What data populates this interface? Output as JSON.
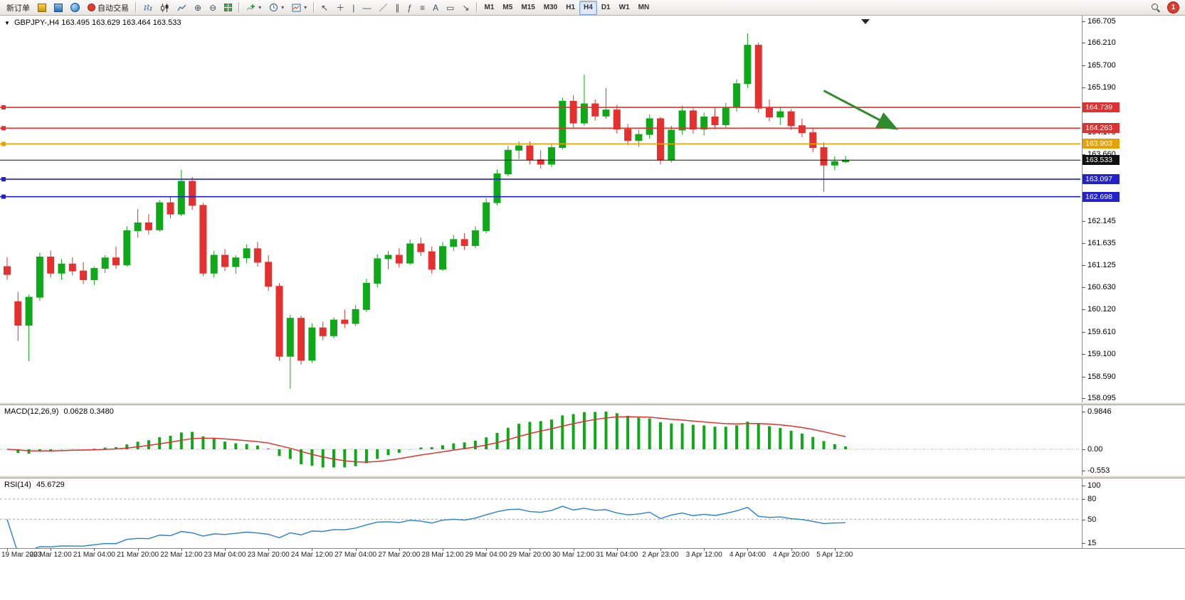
{
  "toolbar": {
    "new_order_label": "新订单",
    "autotrading_label": "自动交易",
    "timeframes": [
      "M1",
      "M5",
      "M15",
      "M30",
      "H1",
      "H4",
      "D1",
      "W1",
      "MN"
    ],
    "active_timeframe": "H4",
    "notification_count": "1"
  },
  "chart_header": {
    "symbol_period": "GBPJPY-,H4",
    "ohlc": "163.495 163.629 163.464 163.533"
  },
  "indicators": {
    "macd": {
      "label": "MACD(12,26,9)",
      "values": "0.0628 0.3480",
      "scale": [
        "0.9846",
        "0.00",
        "-0.553"
      ]
    },
    "rsi": {
      "label": "RSI(14)",
      "values": "45.6729",
      "scale": [
        "100",
        "80",
        "50",
        "15"
      ],
      "levels": [
        80,
        50
      ]
    }
  },
  "chart_data": {
    "type": "candlestick",
    "symbol": "GBPJPY-",
    "timeframe": "H4",
    "price_range": {
      "min": 158.095,
      "max": 166.705
    },
    "price_axis_labels": [
      166.705,
      166.21,
      165.7,
      165.19,
      164.17,
      163.66,
      162.145,
      161.635,
      161.125,
      160.63,
      160.12,
      159.61,
      159.1,
      158.59,
      158.095
    ],
    "hlines": [
      {
        "price": 164.739,
        "label": "164.739",
        "color": "#e03131",
        "name": "resistance-line-1",
        "handles": true
      },
      {
        "price": 164.263,
        "label": "164.263",
        "color": "#e03131",
        "name": "resistance-line-2",
        "handles": true
      },
      {
        "price": 163.903,
        "label": "163.903",
        "color": "#e8a200",
        "name": "pivot-line",
        "handles": true
      },
      {
        "price": 163.533,
        "label": "163.533",
        "color": "#111111",
        "name": "current-price-line",
        "handles": false
      },
      {
        "price": 163.097,
        "label": "163.097",
        "color": "#2222cc",
        "name": "support-line-1",
        "handles": true
      },
      {
        "price": 162.698,
        "label": "162.698",
        "color": "#2222cc",
        "name": "support-line-2",
        "handles": true
      }
    ],
    "time_labels": [
      "19 Mar 2023",
      "20 Mar 12:00",
      "21 Mar 04:00",
      "21 Mar 20:00",
      "22 Mar 12:00",
      "23 Mar 04:00",
      "23 Mar 20:00",
      "24 Mar 12:00",
      "27 Mar 04:00",
      "27 Mar 20:00",
      "28 Mar 12:00",
      "29 Mar 04:00",
      "29 Mar 20:00",
      "30 Mar 12:00",
      "31 Mar 04:00",
      "2 Apr 23:00",
      "3 Apr 12:00",
      "4 Apr 04:00",
      "4 Apr 20:00",
      "5 Apr 12:00"
    ],
    "candles": [
      [
        161.1,
        161.32,
        160.8,
        160.92
      ],
      [
        160.3,
        160.52,
        159.4,
        159.76
      ],
      [
        159.76,
        160.46,
        158.94,
        160.4
      ],
      [
        160.4,
        161.42,
        160.32,
        161.32
      ],
      [
        161.32,
        161.47,
        160.85,
        160.95
      ],
      [
        160.95,
        161.27,
        160.8,
        161.16
      ],
      [
        161.16,
        161.31,
        160.9,
        161.0
      ],
      [
        161.0,
        161.2,
        160.7,
        160.8
      ],
      [
        160.8,
        161.1,
        160.68,
        161.06
      ],
      [
        161.06,
        161.36,
        160.95,
        161.3
      ],
      [
        161.3,
        161.56,
        161.05,
        161.14
      ],
      [
        161.14,
        162.02,
        161.1,
        161.92
      ],
      [
        161.92,
        162.42,
        161.76,
        162.1
      ],
      [
        162.1,
        162.3,
        161.84,
        161.94
      ],
      [
        161.94,
        162.62,
        161.9,
        162.56
      ],
      [
        162.56,
        162.7,
        162.2,
        162.3
      ],
      [
        162.3,
        163.31,
        162.25,
        163.05
      ],
      [
        163.05,
        163.15,
        162.4,
        162.5
      ],
      [
        162.5,
        162.56,
        160.88,
        160.95
      ],
      [
        160.95,
        161.46,
        160.85,
        161.36
      ],
      [
        161.36,
        161.5,
        161.0,
        161.1
      ],
      [
        161.1,
        161.36,
        160.94,
        161.3
      ],
      [
        161.3,
        161.61,
        161.18,
        161.51
      ],
      [
        161.51,
        161.66,
        161.1,
        161.2
      ],
      [
        161.2,
        161.36,
        160.55,
        160.65
      ],
      [
        160.65,
        160.72,
        158.95,
        159.05
      ],
      [
        159.05,
        160.0,
        158.31,
        159.92
      ],
      [
        159.92,
        159.98,
        158.86,
        158.96
      ],
      [
        158.96,
        159.8,
        158.9,
        159.7
      ],
      [
        159.7,
        159.84,
        159.42,
        159.52
      ],
      [
        159.52,
        159.94,
        159.46,
        159.88
      ],
      [
        159.88,
        160.12,
        159.7,
        159.8
      ],
      [
        159.8,
        160.22,
        159.74,
        160.12
      ],
      [
        160.12,
        160.82,
        160.06,
        160.72
      ],
      [
        160.72,
        161.38,
        160.62,
        161.28
      ],
      [
        161.28,
        161.46,
        161.04,
        161.36
      ],
      [
        161.36,
        161.52,
        161.08,
        161.18
      ],
      [
        161.18,
        161.72,
        161.14,
        161.62
      ],
      [
        161.62,
        161.76,
        161.34,
        161.44
      ],
      [
        161.44,
        161.56,
        160.94,
        161.04
      ],
      [
        161.04,
        161.66,
        161.0,
        161.56
      ],
      [
        161.56,
        161.82,
        161.46,
        161.72
      ],
      [
        161.72,
        161.86,
        161.48,
        161.58
      ],
      [
        161.58,
        162.02,
        161.52,
        161.92
      ],
      [
        161.92,
        162.66,
        161.86,
        162.56
      ],
      [
        162.56,
        163.32,
        162.5,
        163.22
      ],
      [
        163.22,
        163.86,
        163.16,
        163.76
      ],
      [
        163.76,
        163.96,
        163.56,
        163.86
      ],
      [
        163.86,
        163.96,
        163.44,
        163.54
      ],
      [
        163.54,
        163.76,
        163.34,
        163.44
      ],
      [
        163.44,
        163.92,
        163.38,
        163.82
      ],
      [
        163.82,
        164.96,
        163.78,
        164.88
      ],
      [
        164.88,
        165.02,
        164.28,
        164.38
      ],
      [
        164.38,
        165.49,
        164.32,
        164.82
      ],
      [
        164.82,
        164.92,
        164.44,
        164.54
      ],
      [
        164.54,
        165.18,
        164.48,
        164.68
      ],
      [
        164.68,
        164.8,
        164.14,
        164.24
      ],
      [
        164.24,
        164.36,
        163.88,
        163.98
      ],
      [
        163.98,
        164.22,
        163.84,
        164.12
      ],
      [
        164.12,
        164.58,
        164.02,
        164.48
      ],
      [
        164.48,
        164.52,
        163.44,
        163.54
      ],
      [
        163.54,
        164.32,
        163.48,
        164.22
      ],
      [
        164.22,
        164.78,
        164.12,
        164.66
      ],
      [
        164.66,
        164.72,
        164.14,
        164.24
      ],
      [
        164.24,
        164.62,
        164.1,
        164.52
      ],
      [
        164.52,
        164.72,
        164.24,
        164.34
      ],
      [
        164.34,
        164.84,
        164.28,
        164.74
      ],
      [
        164.74,
        165.38,
        164.64,
        165.28
      ],
      [
        165.28,
        166.43,
        165.18,
        166.16
      ],
      [
        166.16,
        166.22,
        164.62,
        164.72
      ],
      [
        164.72,
        164.92,
        164.42,
        164.52
      ],
      [
        164.52,
        164.76,
        164.34,
        164.64
      ],
      [
        164.64,
        164.7,
        164.22,
        164.32
      ],
      [
        164.32,
        164.48,
        164.06,
        164.16
      ],
      [
        164.16,
        164.28,
        163.72,
        163.82
      ],
      [
        163.82,
        163.94,
        162.81,
        163.42
      ],
      [
        163.42,
        163.62,
        163.3,
        163.5
      ],
      [
        163.495,
        163.629,
        163.464,
        163.533
      ]
    ],
    "colors": {
      "up": "#0fa818",
      "down": "#e53030",
      "macd_hist": "#0fa818",
      "macd_signal": "#e03131",
      "rsi_line": "#2a7fd4",
      "arrow": "#2e8b2e"
    },
    "arrow": {
      "from_candle": 75.0,
      "from_price": 165.12,
      "to_candle": 81.5,
      "to_price": 164.27
    }
  }
}
